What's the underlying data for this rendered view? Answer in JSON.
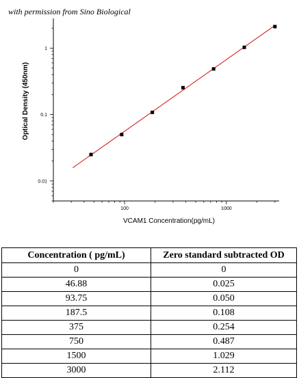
{
  "permission_text": "with permission from Sino Biological",
  "chart_data": {
    "type": "scatter",
    "xlabel": "VCAM1  Concentration(pg/mL)",
    "ylabel": "Optical Density (450nm)",
    "xscale": "log",
    "yscale": "log",
    "xlim": [
      20,
      3300
    ],
    "ylim": [
      0.005,
      2.8
    ],
    "x_ticks": [
      100,
      1000
    ],
    "y_ticks": [
      0.01,
      0.1,
      1
    ],
    "x_tick_labels": [
      "100",
      "1000"
    ],
    "y_tick_labels": [
      "0.01",
      "0.1",
      "1"
    ],
    "grid": false,
    "points": {
      "x": [
        46.88,
        93.75,
        187.5,
        375,
        750,
        1500,
        3000
      ],
      "y": [
        0.025,
        0.05,
        0.108,
        0.254,
        0.487,
        1.029,
        2.112
      ]
    },
    "fit_line": {
      "x": [
        31,
        3000
      ],
      "y": [
        0.0158,
        2.2
      ]
    },
    "colors": {
      "points": "#000000",
      "fit_line": "#d01010"
    }
  },
  "table": {
    "headers": [
      "Concentration ( pg/mL)",
      "Zero standard subtracted OD"
    ],
    "rows": [
      [
        "0",
        "0"
      ],
      [
        "46.88",
        "0.025"
      ],
      [
        "93.75",
        "0.050"
      ],
      [
        "187.5",
        "0.108"
      ],
      [
        "375",
        "0.254"
      ],
      [
        "750",
        "0.487"
      ],
      [
        "1500",
        "1.029"
      ],
      [
        "3000",
        "2.112"
      ]
    ]
  }
}
